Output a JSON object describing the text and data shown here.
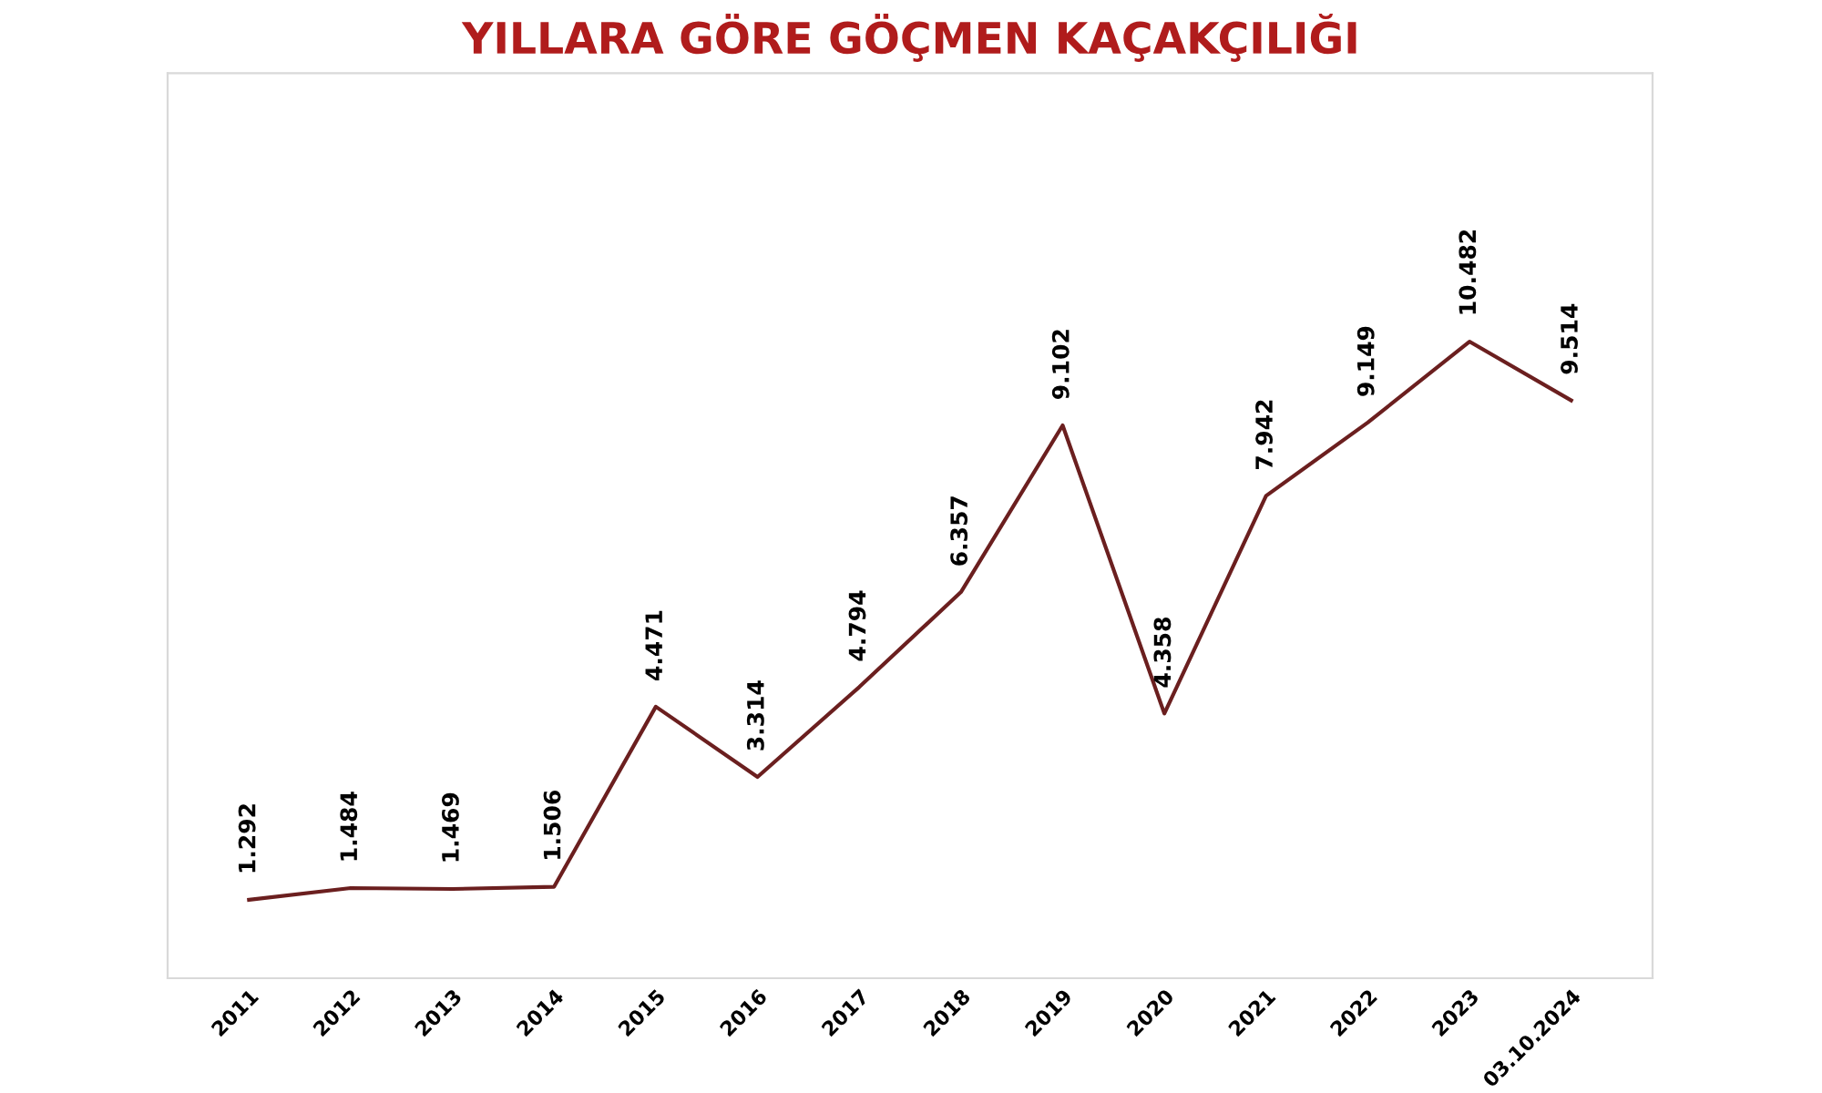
{
  "chart_data": {
    "type": "line",
    "title": "YILLARA GÖRE GÖÇMEN KAÇAKÇILIĞI",
    "categories": [
      "2011",
      "2012",
      "2013",
      "2014",
      "2015",
      "2016",
      "2017",
      "2018",
      "2019",
      "2020",
      "2021",
      "2022",
      "2023",
      "03.10.2024"
    ],
    "series": [
      {
        "color": "#6b1f1f",
        "values": [
          1292,
          1484,
          1469,
          1506,
          4471,
          3314,
          4794,
          6357,
          9102,
          4358,
          7942,
          9149,
          10482,
          9514
        ],
        "value_labels": [
          "1.292",
          "1.484",
          "1.469",
          "1.506",
          "4.471",
          "3.314",
          "4.794",
          "6.357",
          "9.102",
          "4.358",
          "7.942",
          "9.149",
          "10.482",
          "9.514"
        ]
      }
    ],
    "ylim": [
      0,
      14900
    ],
    "tick_labels": "x",
    "grid": false,
    "legend": false,
    "marker": "none",
    "line_style": "solid"
  }
}
